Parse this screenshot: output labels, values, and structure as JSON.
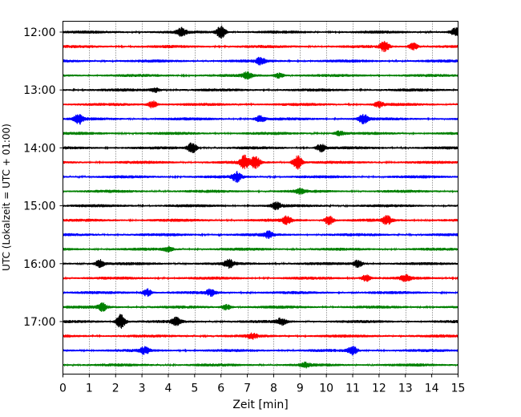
{
  "chart_data": {
    "type": "line",
    "title": "",
    "xlabel": "Zeit  [min]",
    "ylabel": "UTC (Lokalzeit = UTC + 01:00)",
    "xlim": [
      0,
      15
    ],
    "x_ticks": [
      0,
      1,
      2,
      3,
      4,
      5,
      6,
      7,
      8,
      9,
      10,
      11,
      12,
      13,
      14,
      15
    ],
    "y_tick_labels": [
      "12:00",
      "13:00",
      "14:00",
      "15:00",
      "16:00",
      "17:00"
    ],
    "y_tick_rows": [
      0,
      4,
      8,
      12,
      16,
      20
    ],
    "grid": "vertical dotted lines at each minute",
    "trace_colors": [
      "#000000",
      "#ff0000",
      "#0000ff",
      "#008000"
    ],
    "traces": [
      {
        "start": "12:00",
        "color": "#000000",
        "events": [
          {
            "t": 4.5,
            "a": 1.0
          },
          {
            "t": 6.0,
            "a": 1.7
          },
          {
            "t": 14.9,
            "a": 1.0
          }
        ]
      },
      {
        "start": "12:15",
        "color": "#ff0000",
        "events": [
          {
            "t": 12.2,
            "a": 1.3
          },
          {
            "t": 13.3,
            "a": 1.0
          }
        ]
      },
      {
        "start": "12:30",
        "color": "#0000ff",
        "events": [
          {
            "t": 7.5,
            "a": 0.9
          }
        ]
      },
      {
        "start": "12:45",
        "color": "#008000",
        "events": [
          {
            "t": 7.0,
            "a": 0.9
          },
          {
            "t": 8.2,
            "a": 0.7
          }
        ]
      },
      {
        "start": "13:00",
        "color": "#000000",
        "events": [
          {
            "t": 3.5,
            "a": 0.6
          }
        ]
      },
      {
        "start": "13:15",
        "color": "#ff0000",
        "events": [
          {
            "t": 3.4,
            "a": 1.0
          },
          {
            "t": 12.0,
            "a": 0.7
          }
        ]
      },
      {
        "start": "13:30",
        "color": "#0000ff",
        "events": [
          {
            "t": 0.6,
            "a": 1.3
          },
          {
            "t": 7.5,
            "a": 0.8
          },
          {
            "t": 11.4,
            "a": 1.2
          }
        ]
      },
      {
        "start": "13:45",
        "color": "#008000",
        "events": [
          {
            "t": 10.5,
            "a": 0.6
          }
        ]
      },
      {
        "start": "14:00",
        "color": "#000000",
        "events": [
          {
            "t": 4.9,
            "a": 1.4
          },
          {
            "t": 9.8,
            "a": 1.1
          }
        ]
      },
      {
        "start": "14:15",
        "color": "#ff0000",
        "events": [
          {
            "t": 6.9,
            "a": 1.8
          },
          {
            "t": 7.3,
            "a": 1.6
          },
          {
            "t": 8.9,
            "a": 1.9
          }
        ]
      },
      {
        "start": "14:30",
        "color": "#0000ff",
        "events": [
          {
            "t": 6.6,
            "a": 1.3
          }
        ]
      },
      {
        "start": "14:45",
        "color": "#008000",
        "events": [
          {
            "t": 9.0,
            "a": 0.6
          }
        ]
      },
      {
        "start": "15:00",
        "color": "#000000",
        "events": [
          {
            "t": 8.1,
            "a": 0.9
          }
        ]
      },
      {
        "start": "15:15",
        "color": "#ff0000",
        "events": [
          {
            "t": 8.5,
            "a": 1.0
          },
          {
            "t": 10.1,
            "a": 1.2
          },
          {
            "t": 12.3,
            "a": 1.1
          }
        ]
      },
      {
        "start": "15:30",
        "color": "#0000ff",
        "events": [
          {
            "t": 7.8,
            "a": 0.8
          }
        ]
      },
      {
        "start": "15:45",
        "color": "#008000",
        "events": [
          {
            "t": 4.0,
            "a": 0.6
          }
        ]
      },
      {
        "start": "16:00",
        "color": "#000000",
        "events": [
          {
            "t": 1.4,
            "a": 1.0
          },
          {
            "t": 6.3,
            "a": 1.0
          },
          {
            "t": 11.2,
            "a": 1.0
          }
        ]
      },
      {
        "start": "16:15",
        "color": "#ff0000",
        "events": [
          {
            "t": 11.5,
            "a": 0.9
          },
          {
            "t": 13.0,
            "a": 0.8
          }
        ]
      },
      {
        "start": "16:30",
        "color": "#0000ff",
        "events": [
          {
            "t": 3.2,
            "a": 1.0
          },
          {
            "t": 5.6,
            "a": 0.8
          }
        ]
      },
      {
        "start": "16:45",
        "color": "#008000",
        "events": [
          {
            "t": 1.5,
            "a": 1.0
          },
          {
            "t": 6.2,
            "a": 0.8
          }
        ]
      },
      {
        "start": "17:00",
        "color": "#000000",
        "events": [
          {
            "t": 2.2,
            "a": 2.0
          },
          {
            "t": 4.3,
            "a": 1.0
          },
          {
            "t": 8.3,
            "a": 0.9
          }
        ]
      },
      {
        "start": "17:15",
        "color": "#ff0000",
        "events": [
          {
            "t": 7.2,
            "a": 0.7
          }
        ]
      },
      {
        "start": "17:30",
        "color": "#0000ff",
        "events": [
          {
            "t": 3.1,
            "a": 0.9
          },
          {
            "t": 11.0,
            "a": 1.1
          }
        ]
      },
      {
        "start": "17:45",
        "color": "#008000",
        "events": [
          {
            "t": 9.2,
            "a": 0.6
          }
        ]
      }
    ]
  }
}
